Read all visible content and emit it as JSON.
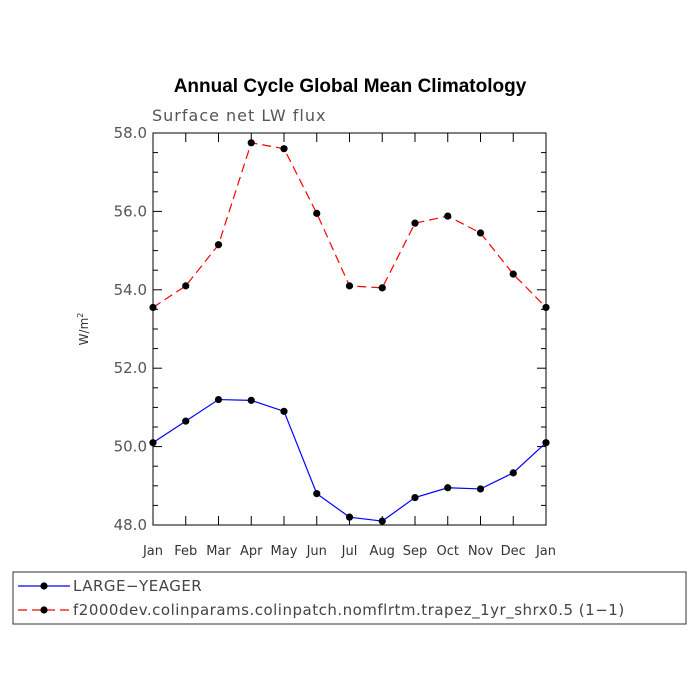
{
  "chart_data": {
    "type": "line",
    "title": "Annual Cycle Global Mean Climatology",
    "subtitle": "Surface net LW flux",
    "xlabel": "",
    "ylabel": "W/m",
    "ylabel_superscript": "2",
    "categories": [
      "Jan",
      "Feb",
      "Mar",
      "Apr",
      "May",
      "Jun",
      "Jul",
      "Aug",
      "Sep",
      "Oct",
      "Nov",
      "Dec",
      "Jan"
    ],
    "ylim": [
      48.0,
      58.0
    ],
    "yticks": [
      48.0,
      50.0,
      52.0,
      54.0,
      56.0,
      58.0
    ],
    "ytick_labels": [
      "48.0",
      "50.0",
      "52.0",
      "54.0",
      "56.0",
      "58.0"
    ],
    "grid": false,
    "legend_position": "bottom",
    "series": [
      {
        "name": "LARGE−YEAGER",
        "color": "#0000ff",
        "dash": "solid",
        "marker": "circle",
        "values": [
          50.1,
          50.65,
          51.2,
          51.18,
          50.9,
          48.8,
          48.2,
          48.1,
          48.7,
          48.95,
          48.92,
          49.33,
          50.1
        ]
      },
      {
        "name": "f2000dev.colinparams.colinpatch.nomflrtm.trapez_1yr_shrx0.5 (1−1)",
        "color": "#ff0000",
        "dash": "dashed",
        "marker": "circle",
        "values": [
          53.55,
          54.1,
          55.15,
          57.75,
          57.6,
          55.95,
          54.1,
          54.05,
          55.7,
          55.88,
          55.45,
          54.4,
          53.55
        ]
      }
    ]
  }
}
